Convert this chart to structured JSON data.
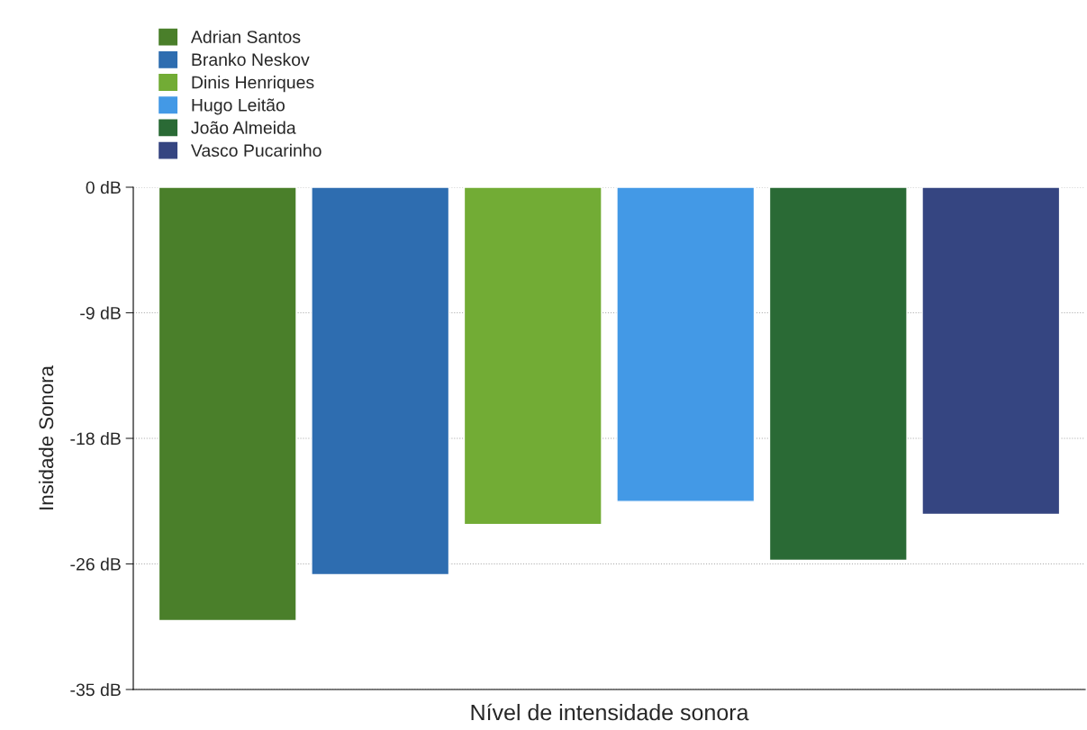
{
  "chart_data": {
    "type": "bar",
    "xlabel": "Nível de intensidade sonora",
    "ylabel": "Insidade Sonora",
    "categories": [
      null
    ],
    "series": [
      {
        "name": "Adrian Santos",
        "color": "#4a7f2a",
        "values": [
          -30.2
        ]
      },
      {
        "name": "Branko Neskov",
        "color": "#2e6db0",
        "values": [
          -27
        ]
      },
      {
        "name": "Dinis Henriques",
        "color": "#72ac35",
        "values": [
          -23.5
        ]
      },
      {
        "name": "Hugo Leitão",
        "color": "#4399e6",
        "values": [
          -21.9
        ]
      },
      {
        "name": "João Almeida",
        "color": "#2a6a35",
        "values": [
          -26
        ]
      },
      {
        "name": "Vasco Pucarinho",
        "color": "#354581",
        "values": [
          -22.8
        ]
      }
    ],
    "ylim": [
      -35,
      0
    ],
    "yticks": [
      {
        "value": 0,
        "label": "0 dB"
      },
      {
        "value": -8.75,
        "label": "-9 dB"
      },
      {
        "value": -17.5,
        "label": "-18 dB"
      },
      {
        "value": -26.25,
        "label": "-26 dB"
      },
      {
        "value": -35,
        "label": "-35 dB"
      }
    ],
    "grid": "y",
    "legend": "top left"
  }
}
